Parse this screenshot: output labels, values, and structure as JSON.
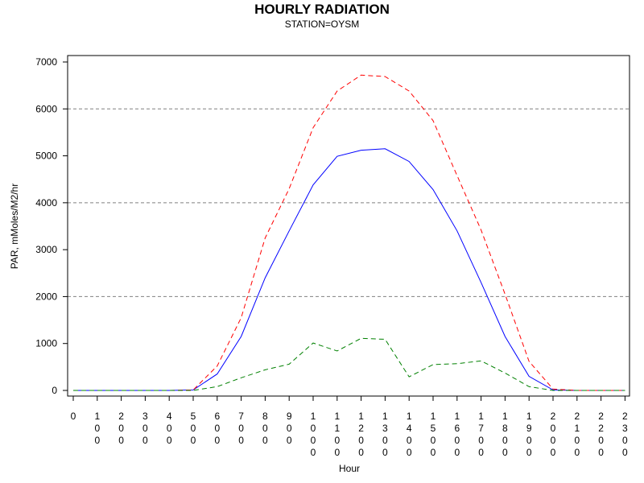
{
  "title": "HOURLY RADIATION",
  "subtitle": "STATION=OYSM",
  "chart_data": {
    "type": "line",
    "title": "HOURLY RADIATION",
    "subtitle": "STATION=OYSM",
    "xlabel": "Hour",
    "ylabel": "PAR, mMoles/M2/hr",
    "ylim": [
      0,
      7000
    ],
    "yticks": [
      0,
      1000,
      2000,
      3000,
      4000,
      5000,
      6000,
      7000
    ],
    "grid": "horizontal dashed at 2000, 4000, 6000",
    "x": [
      0,
      100,
      200,
      300,
      400,
      500,
      600,
      700,
      800,
      900,
      1000,
      1100,
      1200,
      1300,
      1400,
      1500,
      1600,
      1700,
      1800,
      1900,
      2000,
      2100,
      2200,
      2300
    ],
    "xtick_labels": [
      "0",
      "100",
      "200",
      "300",
      "400",
      "500",
      "600",
      "700",
      "800",
      "900",
      "1000",
      "1100",
      "1200",
      "1300",
      "1400",
      "1500",
      "1600",
      "1700",
      "1800",
      "1900",
      "2000",
      "2100",
      "2200",
      "2300"
    ],
    "series": [
      {
        "color": "#0000ff",
        "dash": "solid",
        "values": [
          0,
          0,
          0,
          0,
          0,
          10,
          350,
          1150,
          2400,
          3400,
          4380,
          4990,
          5120,
          5150,
          4880,
          4280,
          3400,
          2300,
          1150,
          300,
          10,
          0,
          0,
          0
        ]
      },
      {
        "color": "#ff0000",
        "dash": "dashed",
        "values": [
          0,
          0,
          0,
          0,
          0,
          10,
          520,
          1550,
          3250,
          4300,
          5600,
          6380,
          6720,
          6690,
          6380,
          5750,
          4580,
          3420,
          2050,
          620,
          30,
          0,
          0,
          0
        ]
      },
      {
        "color": "#008000",
        "dash": "dashed",
        "values": [
          0,
          0,
          0,
          0,
          0,
          0,
          80,
          270,
          440,
          560,
          1010,
          840,
          1110,
          1090,
          290,
          550,
          570,
          630,
          370,
          80,
          0,
          0,
          0,
          0
        ]
      }
    ]
  }
}
